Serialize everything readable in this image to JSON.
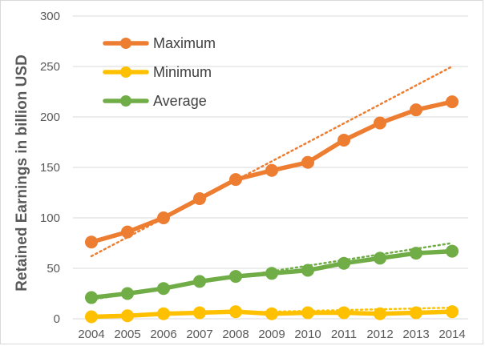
{
  "chart_data": {
    "type": "line",
    "title": "",
    "xlabel": "",
    "ylabel": "Retained Earnings in billion USD",
    "x": [
      "2004",
      "2005",
      "2006",
      "2007",
      "2008",
      "2009",
      "2010",
      "2011",
      "2012",
      "2013",
      "2014"
    ],
    "ylim": [
      0,
      300
    ],
    "yticks": [
      0,
      50,
      100,
      150,
      200,
      250,
      300
    ],
    "grid": true,
    "legend": "top-left",
    "series": [
      {
        "name": "Maximum",
        "color": "#ED7D31",
        "values": [
          76,
          86,
          100,
          119,
          138,
          147,
          155,
          177,
          194,
          207,
          215
        ],
        "trendline": {
          "type": "linear",
          "style": "dotted",
          "start": 62,
          "end": 250
        }
      },
      {
        "name": "Minimum",
        "color": "#FFC000",
        "values": [
          2,
          3,
          5,
          6,
          7,
          5,
          6,
          6,
          5,
          6,
          7
        ],
        "trendline": {
          "type": "linear",
          "style": "dotted",
          "start": 3,
          "end": 11
        }
      },
      {
        "name": "Average",
        "color": "#70AD47",
        "values": [
          21,
          25,
          30,
          37,
          42,
          45,
          48,
          55,
          60,
          65,
          67
        ],
        "trendline": {
          "type": "linear",
          "style": "dotted",
          "start": 19,
          "end": 75
        }
      }
    ]
  }
}
